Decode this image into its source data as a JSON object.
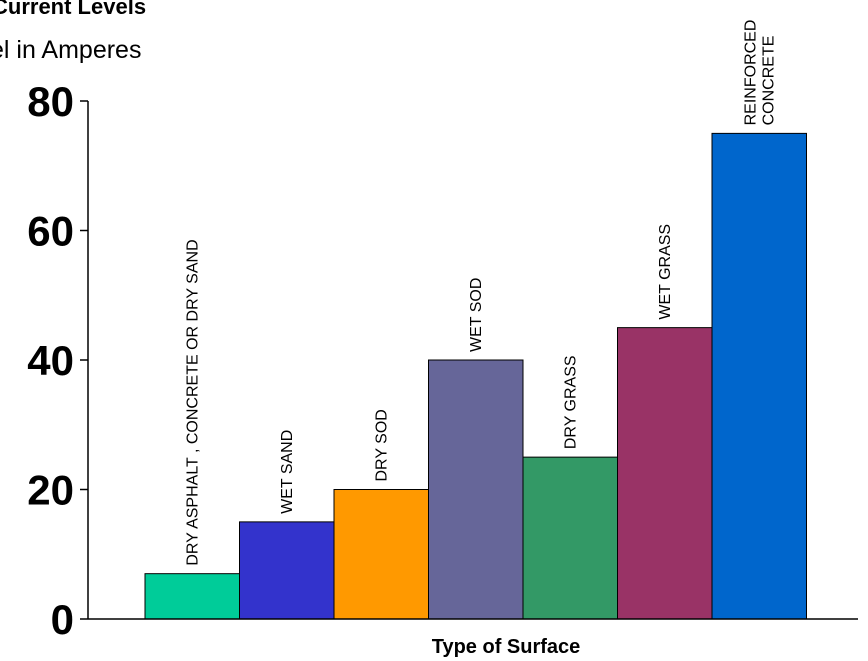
{
  "chart_data": {
    "type": "bar",
    "title": "Current Levels",
    "subtitle": "el in Amperes",
    "xlabel": "Type of Surface",
    "ylabel": "",
    "ylim": [
      0,
      80
    ],
    "yticks": [
      0,
      20,
      40,
      60,
      80
    ],
    "grid": false,
    "categories": [
      [
        "DRY ASPHALT , CONCRETE OR DRY SAND"
      ],
      [
        "WET SAND"
      ],
      [
        "DRY SOD"
      ],
      [
        "WET SOD"
      ],
      [
        "DRY GRASS"
      ],
      [
        "WET GRASS"
      ],
      [
        "REINFORCED",
        "CONCRETE"
      ]
    ],
    "values": [
      7,
      15,
      20,
      40,
      25,
      45,
      75
    ],
    "colors": [
      "#00CC99",
      "#3333CC",
      "#FF9900",
      "#666699",
      "#339966",
      "#993366",
      "#0066CC"
    ]
  }
}
